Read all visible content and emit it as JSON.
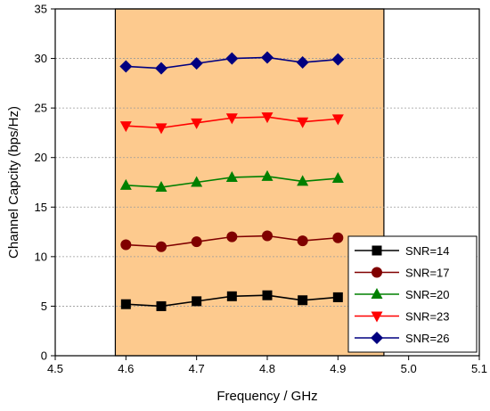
{
  "chart_data": {
    "type": "line",
    "xlabel": "Frequency / GHz",
    "ylabel": "Channel Capcity (bps/Hz)",
    "xlim": [
      4.5,
      5.1
    ],
    "ylim": [
      0,
      35
    ],
    "xticks": [
      "4.5",
      "4.6",
      "4.7",
      "4.8",
      "4.9",
      "5.0",
      "5.1"
    ],
    "yticks": [
      "0",
      "5",
      "10",
      "15",
      "20",
      "25",
      "30",
      "35"
    ],
    "grid": "horizontal dashed",
    "legend_position": "bottom-right",
    "highlight_band": {
      "x_range": [
        4.585,
        4.965
      ],
      "color": "#FDCA8E"
    },
    "x": [
      4.6,
      4.65,
      4.7,
      4.75,
      4.8,
      4.85,
      4.9
    ],
    "series": [
      {
        "name": "SNR=14",
        "color": "#000000",
        "marker": "square",
        "values": [
          5.2,
          5.0,
          5.5,
          6.0,
          6.1,
          5.6,
          5.9
        ]
      },
      {
        "name": "SNR=17",
        "color": "#800000",
        "marker": "circle",
        "values": [
          11.2,
          11.0,
          11.5,
          12.0,
          12.1,
          11.6,
          11.9
        ]
      },
      {
        "name": "SNR=20",
        "color": "#008000",
        "marker": "triangle-up",
        "values": [
          17.2,
          17.0,
          17.5,
          18.0,
          18.1,
          17.6,
          17.9
        ]
      },
      {
        "name": "SNR=23",
        "color": "#FF0000",
        "marker": "triangle-down",
        "values": [
          23.2,
          23.0,
          23.5,
          24.0,
          24.1,
          23.6,
          23.9
        ]
      },
      {
        "name": "SNR=26",
        "color": "#000080",
        "marker": "diamond",
        "values": [
          29.2,
          29.0,
          29.5,
          30.0,
          30.1,
          29.6,
          29.9
        ]
      }
    ]
  }
}
